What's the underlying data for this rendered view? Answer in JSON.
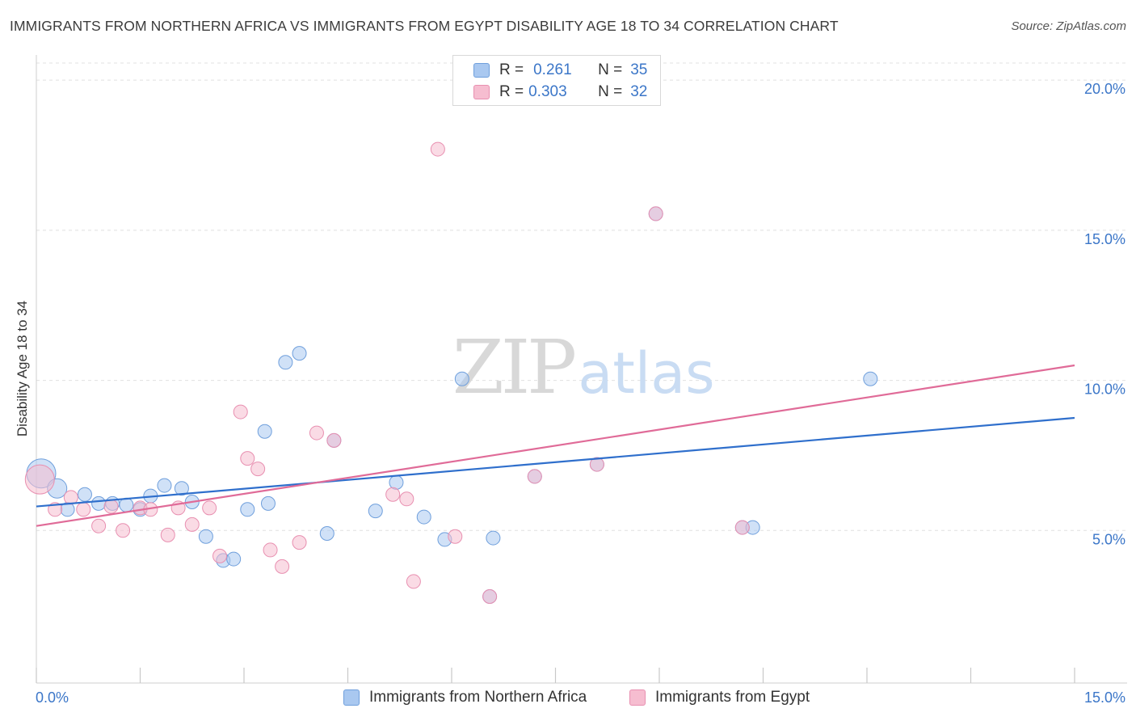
{
  "title": "IMMIGRANTS FROM NORTHERN AFRICA VS IMMIGRANTS FROM EGYPT DISABILITY AGE 18 TO 34 CORRELATION CHART",
  "source": "Source: ZipAtlas.com",
  "watermark": {
    "zip": "ZIP",
    "atlas": "atlas"
  },
  "legend": {
    "r_label": "R =",
    "n_label": "N =",
    "rows": [
      {
        "r": "0.261",
        "n": "35"
      },
      {
        "r": "0.303",
        "n": "32"
      }
    ]
  },
  "colors": {
    "blue_fill": "#a9c8f0",
    "blue_stroke": "#6f9fdc",
    "blue_line": "#2f6fcc",
    "pink_fill": "#f6bdd0",
    "pink_stroke": "#e88fb0",
    "pink_line": "#e06b98",
    "tick_label": "#3b76c8",
    "grid": "#e0e0e0"
  },
  "chart_data": {
    "type": "scatter",
    "title": "IMMIGRANTS FROM NORTHERN AFRICA VS IMMIGRANTS FROM EGYPT DISABILITY AGE 18 TO 34 CORRELATION CHART",
    "xlabel": "",
    "ylabel": "Disability Age 18 to 34",
    "xlim": [
      0,
      15
    ],
    "ylim": [
      0,
      21
    ],
    "x_tick_labels": [
      "0.0%",
      "15.0%"
    ],
    "y_ticks": [
      5,
      10,
      15,
      20
    ],
    "y_tick_labels": [
      "5.0%",
      "10.0%",
      "15.0%",
      "20.0%"
    ],
    "grid": "horizontal dashed",
    "legend_placement": "top-center",
    "series": [
      {
        "name": "Immigrants from Northern Africa",
        "r": 0.261,
        "n": 35,
        "trend": {
          "x": [
            0,
            15
          ],
          "y": [
            5.8,
            8.75
          ]
        },
        "points": [
          {
            "x": 0.07,
            "y": 6.9,
            "s": 3
          },
          {
            "x": 0.3,
            "y": 6.4,
            "s": 2
          },
          {
            "x": 0.45,
            "y": 5.7,
            "s": 1
          },
          {
            "x": 0.7,
            "y": 6.2,
            "s": 1
          },
          {
            "x": 0.9,
            "y": 5.9,
            "s": 1
          },
          {
            "x": 1.1,
            "y": 5.9,
            "s": 1
          },
          {
            "x": 1.3,
            "y": 5.85,
            "s": 1
          },
          {
            "x": 1.5,
            "y": 5.7,
            "s": 1
          },
          {
            "x": 1.65,
            "y": 6.15,
            "s": 1
          },
          {
            "x": 1.85,
            "y": 6.5,
            "s": 1
          },
          {
            "x": 2.1,
            "y": 6.4,
            "s": 1
          },
          {
            "x": 2.25,
            "y": 5.95,
            "s": 1
          },
          {
            "x": 2.45,
            "y": 4.8,
            "s": 1
          },
          {
            "x": 2.7,
            "y": 4.0,
            "s": 1
          },
          {
            "x": 2.85,
            "y": 4.05,
            "s": 1
          },
          {
            "x": 3.05,
            "y": 5.7,
            "s": 1
          },
          {
            "x": 3.3,
            "y": 8.3,
            "s": 1
          },
          {
            "x": 3.35,
            "y": 5.9,
            "s": 1
          },
          {
            "x": 3.6,
            "y": 10.6,
            "s": 1
          },
          {
            "x": 3.8,
            "y": 10.9,
            "s": 1
          },
          {
            "x": 4.3,
            "y": 8.0,
            "s": 1
          },
          {
            "x": 4.2,
            "y": 4.9,
            "s": 1
          },
          {
            "x": 4.9,
            "y": 5.65,
            "s": 1
          },
          {
            "x": 5.2,
            "y": 6.6,
            "s": 1
          },
          {
            "x": 5.6,
            "y": 5.45,
            "s": 1
          },
          {
            "x": 5.9,
            "y": 4.7,
            "s": 1
          },
          {
            "x": 6.15,
            "y": 10.05,
            "s": 1
          },
          {
            "x": 6.55,
            "y": 2.8,
            "s": 1
          },
          {
            "x": 6.6,
            "y": 4.75,
            "s": 1
          },
          {
            "x": 7.2,
            "y": 6.8,
            "s": 1
          },
          {
            "x": 8.1,
            "y": 7.2,
            "s": 1
          },
          {
            "x": 8.95,
            "y": 15.55,
            "s": 1
          },
          {
            "x": 10.2,
            "y": 5.1,
            "s": 1
          },
          {
            "x": 10.35,
            "y": 5.1,
            "s": 1
          },
          {
            "x": 12.05,
            "y": 10.05,
            "s": 1
          }
        ]
      },
      {
        "name": "Immigrants from Egypt",
        "r": 0.303,
        "n": 32,
        "trend": {
          "x": [
            0,
            15
          ],
          "y": [
            5.15,
            10.5
          ]
        },
        "points": [
          {
            "x": 0.05,
            "y": 6.7,
            "s": 3
          },
          {
            "x": 0.27,
            "y": 5.7,
            "s": 1
          },
          {
            "x": 0.5,
            "y": 6.1,
            "s": 1
          },
          {
            "x": 0.68,
            "y": 5.7,
            "s": 1
          },
          {
            "x": 0.9,
            "y": 5.15,
            "s": 1
          },
          {
            "x": 1.08,
            "y": 5.8,
            "s": 1
          },
          {
            "x": 1.25,
            "y": 5.0,
            "s": 1
          },
          {
            "x": 1.5,
            "y": 5.75,
            "s": 1
          },
          {
            "x": 1.65,
            "y": 5.7,
            "s": 1
          },
          {
            "x": 1.9,
            "y": 4.85,
            "s": 1
          },
          {
            "x": 2.05,
            "y": 5.75,
            "s": 1
          },
          {
            "x": 2.25,
            "y": 5.2,
            "s": 1
          },
          {
            "x": 2.5,
            "y": 5.75,
            "s": 1
          },
          {
            "x": 2.65,
            "y": 4.15,
            "s": 1
          },
          {
            "x": 2.95,
            "y": 8.95,
            "s": 1
          },
          {
            "x": 3.05,
            "y": 7.4,
            "s": 1
          },
          {
            "x": 3.2,
            "y": 7.05,
            "s": 1
          },
          {
            "x": 3.38,
            "y": 4.35,
            "s": 1
          },
          {
            "x": 3.55,
            "y": 3.8,
            "s": 1
          },
          {
            "x": 3.8,
            "y": 4.6,
            "s": 1
          },
          {
            "x": 4.05,
            "y": 8.25,
            "s": 1
          },
          {
            "x": 4.3,
            "y": 8.0,
            "s": 1
          },
          {
            "x": 5.15,
            "y": 6.2,
            "s": 1
          },
          {
            "x": 5.35,
            "y": 6.05,
            "s": 1
          },
          {
            "x": 5.45,
            "y": 3.3,
            "s": 1
          },
          {
            "x": 5.8,
            "y": 17.7,
            "s": 1
          },
          {
            "x": 6.05,
            "y": 4.8,
            "s": 1
          },
          {
            "x": 6.55,
            "y": 2.8,
            "s": 1
          },
          {
            "x": 7.2,
            "y": 6.8,
            "s": 1
          },
          {
            "x": 8.1,
            "y": 7.2,
            "s": 1
          },
          {
            "x": 8.95,
            "y": 15.55,
            "s": 1
          },
          {
            "x": 10.2,
            "y": 5.1,
            "s": 1
          }
        ]
      }
    ]
  }
}
